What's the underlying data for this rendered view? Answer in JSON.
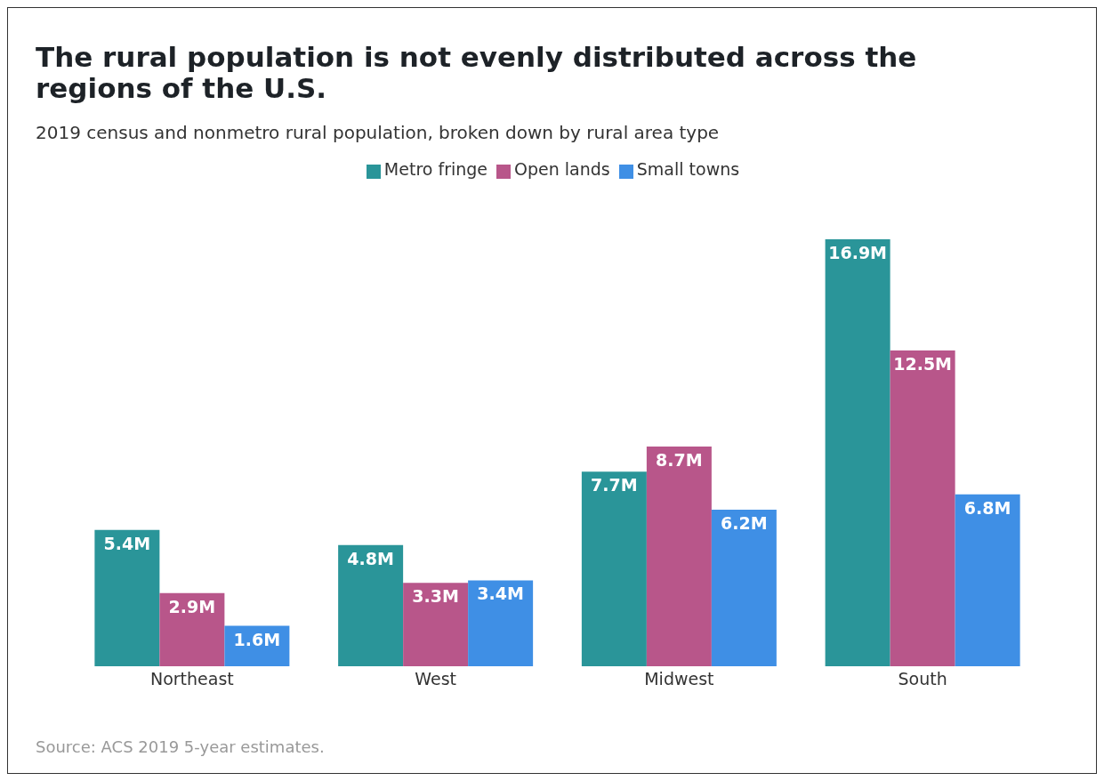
{
  "chart_data": {
    "type": "bar",
    "title": "The rural population is not evenly distributed across the regions of the U.S.",
    "subtitle": "2019 census and nonmetro rural population, broken down by rural area type",
    "categories": [
      "Northeast",
      "West",
      "Midwest",
      "South"
    ],
    "series": [
      {
        "name": "Metro fringe",
        "color": "#2a9599",
        "values": [
          5.4,
          4.8,
          7.7,
          16.9
        ],
        "value_labels": [
          "5.4M",
          "4.8M",
          "7.7M",
          "16.9M"
        ]
      },
      {
        "name": "Open lands",
        "color": "#b8568a",
        "values": [
          2.9,
          3.3,
          8.7,
          12.5
        ],
        "value_labels": [
          "2.9M",
          "3.3M",
          "8.7M",
          "12.5M"
        ]
      },
      {
        "name": "Small towns",
        "color": "#3f8fe5",
        "values": [
          1.6,
          3.4,
          6.2,
          6.8
        ],
        "value_labels": [
          "1.6M",
          "3.4M",
          "6.2M",
          "6.8M"
        ]
      }
    ],
    "legend": "top",
    "grid": false,
    "tick_labels": "x",
    "annotations": [
      "Source: ACS 2019 5-year estimates."
    ]
  }
}
